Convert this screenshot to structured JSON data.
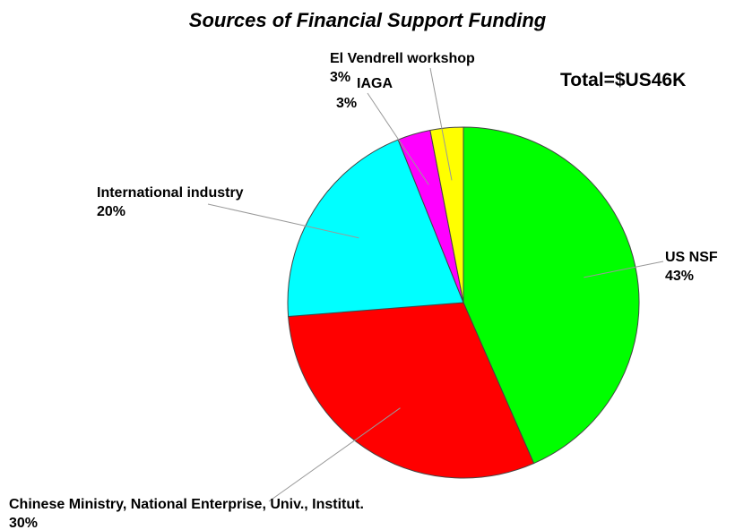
{
  "chart_data": {
    "type": "pie",
    "title": "Sources of Financial Support Funding",
    "annotation": "Total=$US46K",
    "slices": [
      {
        "label": "US NSF",
        "value": 43,
        "value_label": "43%",
        "color": "#00ff00"
      },
      {
        "label": "Chinese Ministry, National Enterprise, Univ., Institut.",
        "value": 30,
        "value_label": "30%",
        "color": "#ff0000"
      },
      {
        "label": "International industry",
        "value": 20,
        "value_label": "20%",
        "color": "#00ffff"
      },
      {
        "label": "IAGA",
        "value": 3,
        "value_label": "3%",
        "color": "#ff00ff"
      },
      {
        "label": "El Vendrell workshop",
        "value": 3,
        "value_label": "3%",
        "color": "#ffff00"
      }
    ],
    "start": "12 o'clock",
    "direction": "clockwise"
  }
}
